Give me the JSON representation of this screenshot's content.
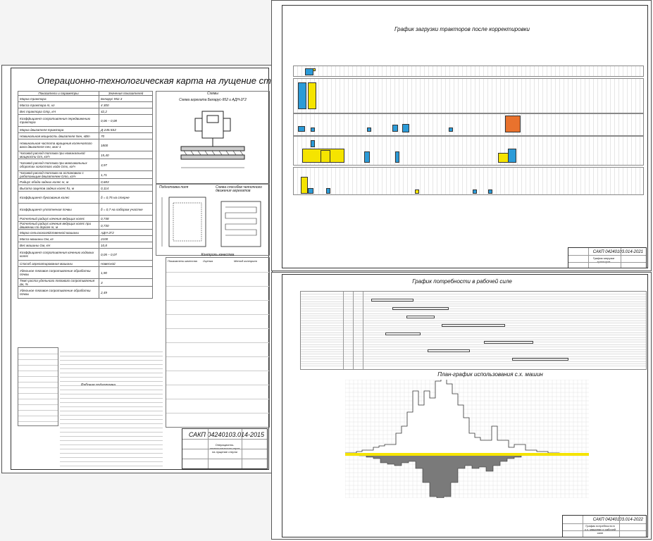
{
  "sheets": {
    "operation_map": {
      "title": "Операционно-технологическая карта на лущение стерни",
      "table_headers": [
        "Показатели и параметры",
        "Значения показателей"
      ],
      "scheme_header": "Схемы",
      "scheme_caption": "Схема агрегата Беларус-952 и АДН-2Г2",
      "rows": [
        [
          "Марка трактора",
          "Беларус 952.3"
        ],
        [
          "Масса трактора m, кг",
          "4 300"
        ],
        [
          "Вес трактора Gтр, кН",
          "42,2"
        ],
        [
          "Коэффициент сопротивления передвижению трактора",
          "0,06 – 0,08"
        ],
        [
          "Марка двигателя трактора",
          "Д-245.5S2"
        ],
        [
          "Номинальная мощность двигателя Nен, кВт",
          "70"
        ],
        [
          "Номинальная частота вращения коленчатого вала двигателя nен, мин-1",
          "1800"
        ],
        [
          "Часовой расход топлива при номинальной мощности Gт, кг/ч",
          "15,40"
        ],
        [
          "Часовой расход топлива при максимальных оборотах холостого хода Gтх, кг/ч",
          "3,97"
        ],
        [
          "Часовой расход топлива на остановках с работающим двигателем Gто, кг/ч",
          "1,71"
        ],
        [
          "Радиус обода задних колес rк, м",
          "0,683"
        ],
        [
          "Высота зацепов задних колес hз, м",
          "0,114"
        ],
        [
          "Коэффициент буксования колес",
          "δ = 0,75 на стерне"
        ],
        [
          "Коэффициент уплотнения почвы",
          "δ = 0,7 на лабором участке"
        ],
        [
          "Расчетный радиус качения ведущих колес",
          "0,748"
        ],
        [
          "Расчетный радиус качения ведущих колес при движении по дороге rк, м",
          "0,730"
        ],
        [
          "Марка сельскохозяйственной машины",
          "АДН-2Г2"
        ],
        [
          "Масса машины Gм, кг",
          "2100"
        ],
        [
          "Вес машины Gм, кН",
          "10,8"
        ],
        [
          "Коэффициент сопротивления качению ходовых колес",
          "0,05 – 0,07"
        ],
        [
          "Способ агрегатирования машины",
          "Навесной"
        ],
        [
          "Удельное тяговое сопротивление обработки почвы",
          "1,90"
        ],
        [
          "Темп роста удельного тягового сопротивления Δк, %",
          "3"
        ],
        [
          "Удельное тяговое сопротивление обработки почвы",
          "2,49"
        ]
      ],
      "field_caption": "Подготовка поля",
      "motion_caption": "Схема способов челночного движения агрегатов",
      "quality_caption": "Контроль качества",
      "quality_headers": [
        "Показатели качества",
        "Оценка",
        "Метод контроля"
      ],
      "work_caption": "Рабочая подготовка",
      "stamp_code": "САКП 04240103.014-2015",
      "stamp_desc": "Операционно-технологическая карта на лущение стерни"
    },
    "tractor_load": {
      "title": "График загрузки тракторов после корректировки",
      "stamp_code": "САКП 04240103.014-2021",
      "stamp_desc": "График загрузки тракторов"
    },
    "labor_need": {
      "title": "График потребности в рабочей силе",
      "stamp_code": "",
      "stamp_desc": ""
    },
    "machine_plan": {
      "title": "План-график использования с.х. машин",
      "stamp_code": "САКП 04240103.014-2022",
      "stamp_desc": "График потребности в с.х. машинах и рабочей силе"
    }
  },
  "colors": {
    "yellow": "#f5e400",
    "blue": "#2b9bd8",
    "orange": "#e9722d",
    "gray": "#7a7a7a",
    "line": "#333333"
  },
  "icons": [
    "tractor-unit-icon"
  ]
}
